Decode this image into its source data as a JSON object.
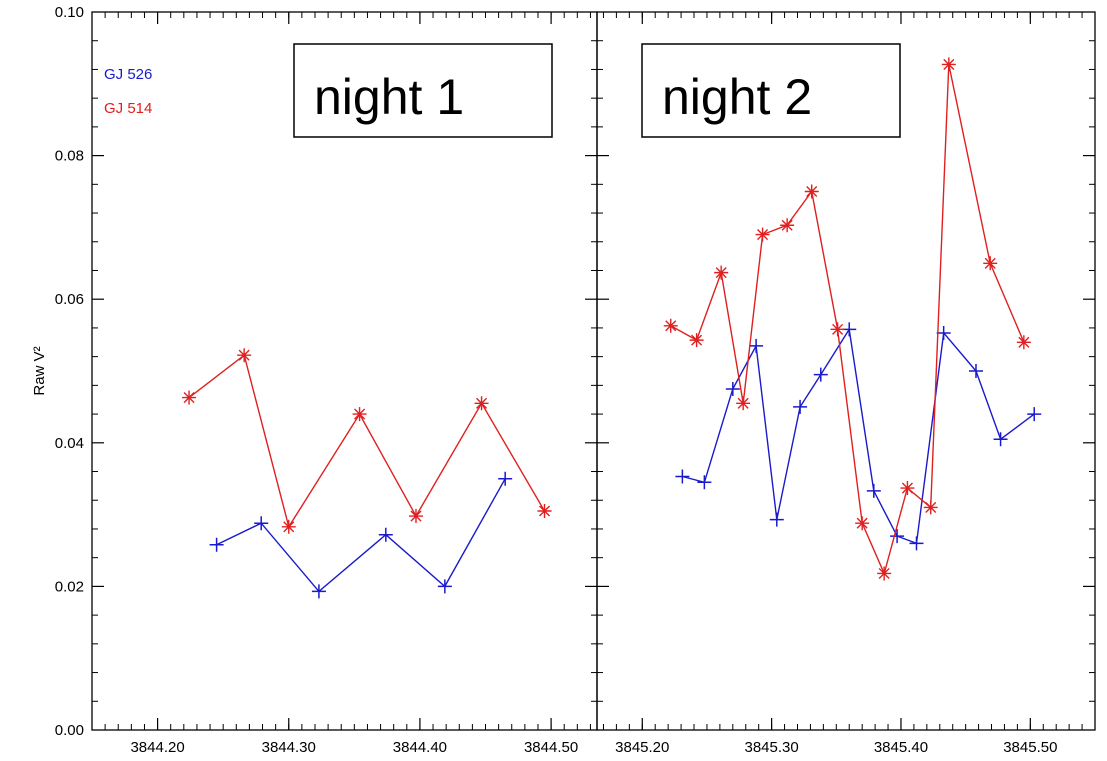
{
  "chart_data": [
    {
      "type": "line",
      "title": "",
      "annotation": "night 1",
      "xlabel": "",
      "ylabel": "Raw V²",
      "xlim": [
        3844.15,
        3844.535
      ],
      "ylim": [
        0.0,
        0.1
      ],
      "x_ticks": [
        "3844.20",
        "3844.30",
        "3844.40",
        "3844.50"
      ],
      "x_tick_values": [
        3844.2,
        3844.3,
        3844.4,
        3844.5
      ],
      "y_ticks": [
        "0.00",
        "0.02",
        "0.04",
        "0.06",
        "0.08",
        "0.10"
      ],
      "y_tick_values": [
        0.0,
        0.02,
        0.04,
        0.06,
        0.08,
        0.1
      ],
      "grid": false,
      "legend_placement": "top-left",
      "series": [
        {
          "name": "GJ 526",
          "color": "#1a1acc",
          "marker": "plus",
          "x": [
            3844.245,
            3844.279,
            3844.323,
            3844.374,
            3844.419,
            3844.465
          ],
          "y": [
            0.0258,
            0.0288,
            0.0193,
            0.0272,
            0.02,
            0.035
          ]
        },
        {
          "name": "GJ 514",
          "color": "#e02020",
          "marker": "asterisk",
          "x": [
            3844.224,
            3844.266,
            3844.3,
            3844.354,
            3844.397,
            3844.447,
            3844.495
          ],
          "y": [
            0.0463,
            0.0522,
            0.0283,
            0.044,
            0.0298,
            0.0455,
            0.0305
          ]
        }
      ]
    },
    {
      "type": "line",
      "title": "",
      "annotation": "night 2",
      "xlabel": "",
      "ylabel": "",
      "xlim": [
        3845.165,
        3845.55
      ],
      "ylim": [
        0.0,
        0.1
      ],
      "x_ticks": [
        "3845.20",
        "3845.30",
        "3845.40",
        "3845.50"
      ],
      "x_tick_values": [
        3845.2,
        3845.3,
        3845.4,
        3845.5
      ],
      "y_ticks": [],
      "grid": false,
      "series": [
        {
          "name": "GJ 526",
          "color": "#1a1acc",
          "marker": "plus",
          "x": [
            3845.231,
            3845.248,
            3845.27,
            3845.288,
            3845.304,
            3845.322,
            3845.338,
            3845.36,
            3845.379,
            3845.397,
            3845.412,
            3845.433,
            3845.458,
            3845.477,
            3845.503
          ],
          "y": [
            0.0353,
            0.0345,
            0.0475,
            0.0535,
            0.0293,
            0.045,
            0.0495,
            0.0558,
            0.0333,
            0.027,
            0.026,
            0.0553,
            0.05,
            0.0405,
            0.044
          ]
        },
        {
          "name": "GJ 514",
          "color": "#e02020",
          "marker": "asterisk",
          "x": [
            3845.222,
            3845.242,
            3845.261,
            3845.278,
            3845.293,
            3845.312,
            3845.331,
            3845.351,
            3845.37,
            3845.387,
            3845.405,
            3845.423,
            3845.437,
            3845.469,
            3845.495
          ],
          "y": [
            0.0563,
            0.0543,
            0.0637,
            0.0455,
            0.069,
            0.0703,
            0.075,
            0.0558,
            0.0288,
            0.0218,
            0.0337,
            0.031,
            0.0927,
            0.065,
            0.054
          ]
        }
      ]
    }
  ]
}
